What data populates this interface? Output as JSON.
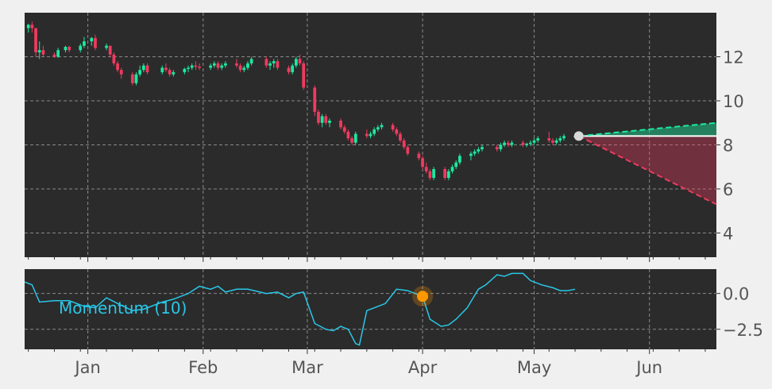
{
  "chart_data": [
    {
      "type": "candlestick",
      "panel": "price",
      "x_axis": "date",
      "xlim": [
        "2024-12-15",
        "2025-06-19"
      ],
      "ylim": [
        2.9,
        14
      ],
      "y_ticks": [
        4,
        6,
        8,
        10,
        12
      ],
      "y_tick_labels": [
        "4",
        "6",
        "8",
        "10",
        "12"
      ],
      "x_ticks": [
        "2025-01-01",
        "2025-02-01",
        "2025-03-01",
        "2025-04-01",
        "2025-05-01",
        "2025-06-01"
      ],
      "x_tick_labels": [
        "Jan",
        "Feb",
        "Mar",
        "Apr",
        "May",
        "Jun"
      ],
      "grid": true,
      "colors": {
        "up": "#1de9a0",
        "down": "#f03a5f",
        "background": "#2b2b2b",
        "grid": "#8a8a8a"
      },
      "candles": [
        [
          "2024-12-16",
          13.3,
          13.5,
          13.1,
          13.45
        ],
        [
          "2024-12-17",
          13.45,
          13.6,
          13.1,
          13.3
        ],
        [
          "2024-12-18",
          13.3,
          13.3,
          12.0,
          12.2
        ],
        [
          "2024-12-19",
          12.2,
          12.7,
          11.9,
          12.3
        ],
        [
          "2024-12-20",
          12.3,
          12.5,
          12.0,
          12.1
        ],
        [
          "2024-12-23",
          12.1,
          12.2,
          11.95,
          12.0
        ],
        [
          "2024-12-24",
          12.0,
          12.4,
          11.95,
          12.3
        ],
        [
          "2024-12-26",
          12.3,
          12.5,
          12.2,
          12.45
        ],
        [
          "2024-12-27",
          12.45,
          12.5,
          12.2,
          12.3
        ],
        [
          "2024-12-30",
          12.3,
          12.6,
          12.2,
          12.5
        ],
        [
          "2024-12-31",
          12.5,
          12.9,
          12.4,
          12.7
        ],
        [
          "2025-01-02",
          12.7,
          12.9,
          12.5,
          12.85
        ],
        [
          "2025-01-03",
          12.85,
          13.0,
          12.3,
          12.4
        ],
        [
          "2025-01-06",
          12.4,
          12.6,
          12.3,
          12.5
        ],
        [
          "2025-01-07",
          12.5,
          12.5,
          12.0,
          12.1
        ],
        [
          "2025-01-08",
          12.1,
          12.2,
          11.6,
          11.7
        ],
        [
          "2025-01-09",
          11.7,
          11.8,
          11.3,
          11.4
        ],
        [
          "2025-01-10",
          11.4,
          11.5,
          11.0,
          11.2
        ],
        [
          "2025-01-13",
          11.2,
          11.3,
          10.7,
          10.8
        ],
        [
          "2025-01-14",
          10.8,
          11.3,
          10.7,
          11.2
        ],
        [
          "2025-01-15",
          11.2,
          11.6,
          11.1,
          11.4
        ],
        [
          "2025-01-16",
          11.4,
          11.7,
          11.3,
          11.6
        ],
        [
          "2025-01-17",
          11.6,
          11.7,
          11.2,
          11.3
        ],
        [
          "2025-01-21",
          11.3,
          11.6,
          11.2,
          11.5
        ],
        [
          "2025-01-22",
          11.5,
          11.7,
          11.3,
          11.4
        ],
        [
          "2025-01-23",
          11.4,
          11.5,
          11.1,
          11.2
        ],
        [
          "2025-01-24",
          11.2,
          11.4,
          11.1,
          11.3
        ],
        [
          "2025-01-27",
          11.3,
          11.5,
          11.2,
          11.45
        ],
        [
          "2025-01-28",
          11.45,
          11.6,
          11.3,
          11.5
        ],
        [
          "2025-01-29",
          11.5,
          11.7,
          11.4,
          11.6
        ],
        [
          "2025-01-30",
          11.6,
          11.8,
          11.4,
          11.55
        ],
        [
          "2025-01-31",
          11.55,
          11.7,
          11.4,
          11.5
        ],
        [
          "2025-02-03",
          11.5,
          11.7,
          11.4,
          11.6
        ],
        [
          "2025-02-04",
          11.6,
          11.8,
          11.5,
          11.7
        ],
        [
          "2025-02-05",
          11.7,
          11.8,
          11.4,
          11.5
        ],
        [
          "2025-02-06",
          11.5,
          11.7,
          11.4,
          11.6
        ],
        [
          "2025-02-07",
          11.6,
          11.8,
          11.5,
          11.7
        ],
        [
          "2025-02-10",
          11.7,
          11.9,
          11.5,
          11.6
        ],
        [
          "2025-02-11",
          11.6,
          11.7,
          11.3,
          11.4
        ],
        [
          "2025-02-12",
          11.4,
          11.6,
          11.3,
          11.5
        ],
        [
          "2025-02-13",
          11.5,
          11.8,
          11.4,
          11.7
        ],
        [
          "2025-02-14",
          11.7,
          12.0,
          11.6,
          11.9
        ],
        [
          "2025-02-18",
          11.9,
          12.0,
          11.5,
          11.6
        ],
        [
          "2025-02-19",
          11.6,
          11.8,
          11.4,
          11.7
        ],
        [
          "2025-02-20",
          11.7,
          11.9,
          11.5,
          11.8
        ],
        [
          "2025-02-21",
          11.8,
          11.9,
          11.4,
          11.5
        ],
        [
          "2025-02-24",
          11.5,
          11.6,
          11.2,
          11.3
        ],
        [
          "2025-02-25",
          11.3,
          11.7,
          11.2,
          11.6
        ],
        [
          "2025-02-26",
          11.6,
          12.0,
          11.5,
          11.9
        ],
        [
          "2025-02-27",
          11.9,
          12.1,
          11.6,
          11.7
        ],
        [
          "2025-02-28",
          11.7,
          11.8,
          10.5,
          10.6
        ],
        [
          "2025-03-03",
          10.6,
          10.7,
          9.3,
          9.5
        ],
        [
          "2025-03-04",
          9.5,
          9.6,
          8.9,
          9.0
        ],
        [
          "2025-03-05",
          9.0,
          9.4,
          8.8,
          9.3
        ],
        [
          "2025-03-06",
          9.3,
          9.4,
          8.9,
          9.0
        ],
        [
          "2025-03-07",
          9.0,
          9.2,
          8.8,
          9.1
        ],
        [
          "2025-03-10",
          9.1,
          9.2,
          8.7,
          8.8
        ],
        [
          "2025-03-11",
          8.8,
          8.9,
          8.5,
          8.6
        ],
        [
          "2025-03-12",
          8.6,
          8.7,
          8.2,
          8.3
        ],
        [
          "2025-03-13",
          8.3,
          8.4,
          8.0,
          8.1
        ],
        [
          "2025-03-14",
          8.1,
          8.6,
          8.0,
          8.5
        ],
        [
          "2025-03-17",
          8.5,
          8.7,
          8.3,
          8.4
        ],
        [
          "2025-03-18",
          8.4,
          8.6,
          8.3,
          8.5
        ],
        [
          "2025-03-19",
          8.5,
          8.8,
          8.4,
          8.7
        ],
        [
          "2025-03-20",
          8.7,
          8.9,
          8.6,
          8.8
        ],
        [
          "2025-03-21",
          8.8,
          9.0,
          8.7,
          8.9
        ],
        [
          "2025-03-24",
          8.9,
          9.0,
          8.6,
          8.7
        ],
        [
          "2025-03-25",
          8.7,
          8.8,
          8.4,
          8.5
        ],
        [
          "2025-03-26",
          8.5,
          8.6,
          8.1,
          8.2
        ],
        [
          "2025-03-27",
          8.2,
          8.3,
          7.8,
          7.9
        ],
        [
          "2025-03-28",
          7.9,
          8.0,
          7.5,
          7.6
        ],
        [
          "2025-03-31",
          7.6,
          7.7,
          7.3,
          7.4
        ],
        [
          "2025-04-01",
          7.4,
          7.5,
          6.9,
          7.0
        ],
        [
          "2025-04-02",
          7.0,
          7.2,
          6.7,
          6.8
        ],
        [
          "2025-04-03",
          6.8,
          6.9,
          6.4,
          6.5
        ],
        [
          "2025-04-04",
          6.5,
          7.0,
          6.4,
          6.9
        ],
        [
          "2025-04-07",
          6.9,
          7.0,
          6.4,
          6.5
        ],
        [
          "2025-04-08",
          6.5,
          6.9,
          6.4,
          6.8
        ],
        [
          "2025-04-09",
          6.8,
          7.1,
          6.7,
          7.0
        ],
        [
          "2025-04-10",
          7.0,
          7.3,
          6.9,
          7.2
        ],
        [
          "2025-04-11",
          7.2,
          7.6,
          7.1,
          7.5
        ],
        [
          "2025-04-14",
          7.5,
          7.7,
          7.3,
          7.6
        ],
        [
          "2025-04-15",
          7.6,
          7.8,
          7.5,
          7.7
        ],
        [
          "2025-04-16",
          7.7,
          7.9,
          7.6,
          7.8
        ],
        [
          "2025-04-17",
          7.8,
          8.0,
          7.7,
          7.9
        ],
        [
          "2025-04-21",
          7.9,
          8.0,
          7.7,
          7.8
        ],
        [
          "2025-04-22",
          7.8,
          8.1,
          7.7,
          8.0
        ],
        [
          "2025-04-23",
          8.0,
          8.2,
          7.9,
          8.1
        ],
        [
          "2025-04-24",
          8.1,
          8.2,
          7.9,
          8.0
        ],
        [
          "2025-04-25",
          8.0,
          8.2,
          7.9,
          8.1
        ],
        [
          "2025-04-28",
          8.1,
          8.2,
          7.9,
          8.0
        ],
        [
          "2025-04-29",
          8.0,
          8.1,
          7.9,
          8.05
        ],
        [
          "2025-04-30",
          8.05,
          8.2,
          7.95,
          8.1
        ],
        [
          "2025-05-01",
          8.1,
          8.3,
          8.0,
          8.2
        ],
        [
          "2025-05-02",
          8.2,
          8.4,
          8.1,
          8.3
        ],
        [
          "2025-05-05",
          8.3,
          8.6,
          8.1,
          8.2
        ],
        [
          "2025-05-06",
          8.2,
          8.3,
          8.0,
          8.1
        ],
        [
          "2025-05-07",
          8.1,
          8.3,
          8.0,
          8.2
        ],
        [
          "2025-05-08",
          8.2,
          8.4,
          8.1,
          8.3
        ],
        [
          "2025-05-09",
          8.3,
          8.5,
          8.2,
          8.4
        ],
        [
          "2025-05-12",
          8.4,
          8.5,
          8.3,
          8.4
        ]
      ],
      "forecast": {
        "start": [
          "2025-05-13",
          8.4
        ],
        "upper_end": [
          "2025-06-19",
          9.0
        ],
        "lower_end": [
          "2025-06-19",
          5.3
        ],
        "upper_color": "#1de9a0",
        "lower_color": "#f03a5f",
        "baseline_color": "#ffffff"
      }
    },
    {
      "type": "line",
      "panel": "indicator",
      "x_axis": "date",
      "xlim": [
        "2024-12-15",
        "2025-06-19"
      ],
      "ylim": [
        -3.9,
        1.7
      ],
      "y_ticks": [
        0.0,
        -2.5
      ],
      "y_tick_labels": [
        "0.0",
        "−2.5"
      ],
      "grid": true,
      "label": "Momentum (10)",
      "color": "#28c8e8",
      "marker": {
        "x": "2025-04-01",
        "y": -0.2,
        "color": "#ff9800"
      },
      "series": [
        [
          "2024-12-15",
          0.8
        ],
        [
          "2024-12-17",
          0.6
        ],
        [
          "2024-12-19",
          -0.6
        ],
        [
          "2024-12-23",
          -0.5
        ],
        [
          "2024-12-27",
          -0.5
        ],
        [
          "2024-12-31",
          -0.9
        ],
        [
          "2025-01-03",
          -1.0
        ],
        [
          "2025-01-06",
          -0.3
        ],
        [
          "2025-01-09",
          -0.7
        ],
        [
          "2025-01-13",
          -1.2
        ],
        [
          "2025-01-16",
          -1.1
        ],
        [
          "2025-01-21",
          -0.6
        ],
        [
          "2025-01-24",
          -0.4
        ],
        [
          "2025-01-28",
          0.0
        ],
        [
          "2025-01-31",
          0.5
        ],
        [
          "2025-02-03",
          0.3
        ],
        [
          "2025-02-05",
          0.5
        ],
        [
          "2025-02-07",
          0.1
        ],
        [
          "2025-02-10",
          0.3
        ],
        [
          "2025-02-13",
          0.3
        ],
        [
          "2025-02-18",
          0.0
        ],
        [
          "2025-02-21",
          0.1
        ],
        [
          "2025-02-24",
          -0.3
        ],
        [
          "2025-02-26",
          0.0
        ],
        [
          "2025-02-28",
          0.1
        ],
        [
          "2025-03-03",
          -2.1
        ],
        [
          "2025-03-06",
          -2.5
        ],
        [
          "2025-03-08",
          -2.6
        ],
        [
          "2025-03-10",
          -2.3
        ],
        [
          "2025-03-12",
          -2.5
        ],
        [
          "2025-03-14",
          -3.5
        ],
        [
          "2025-03-15",
          -3.6
        ],
        [
          "2025-03-17",
          -1.2
        ],
        [
          "2025-03-20",
          -0.9
        ],
        [
          "2025-03-22",
          -0.7
        ],
        [
          "2025-03-25",
          0.3
        ],
        [
          "2025-03-28",
          0.2
        ],
        [
          "2025-04-01",
          -0.2
        ],
        [
          "2025-04-03",
          -1.8
        ],
        [
          "2025-04-06",
          -2.3
        ],
        [
          "2025-04-08",
          -2.2
        ],
        [
          "2025-04-10",
          -1.8
        ],
        [
          "2025-04-13",
          -1.0
        ],
        [
          "2025-04-16",
          0.3
        ],
        [
          "2025-04-18",
          0.6
        ],
        [
          "2025-04-21",
          1.3
        ],
        [
          "2025-04-23",
          1.2
        ],
        [
          "2025-04-25",
          1.4
        ],
        [
          "2025-04-28",
          1.4
        ],
        [
          "2025-04-30",
          0.9
        ],
        [
          "2025-05-03",
          0.6
        ],
        [
          "2025-05-06",
          0.4
        ],
        [
          "2025-05-08",
          0.2
        ],
        [
          "2025-05-10",
          0.2
        ],
        [
          "2025-05-12",
          0.3
        ]
      ]
    }
  ]
}
